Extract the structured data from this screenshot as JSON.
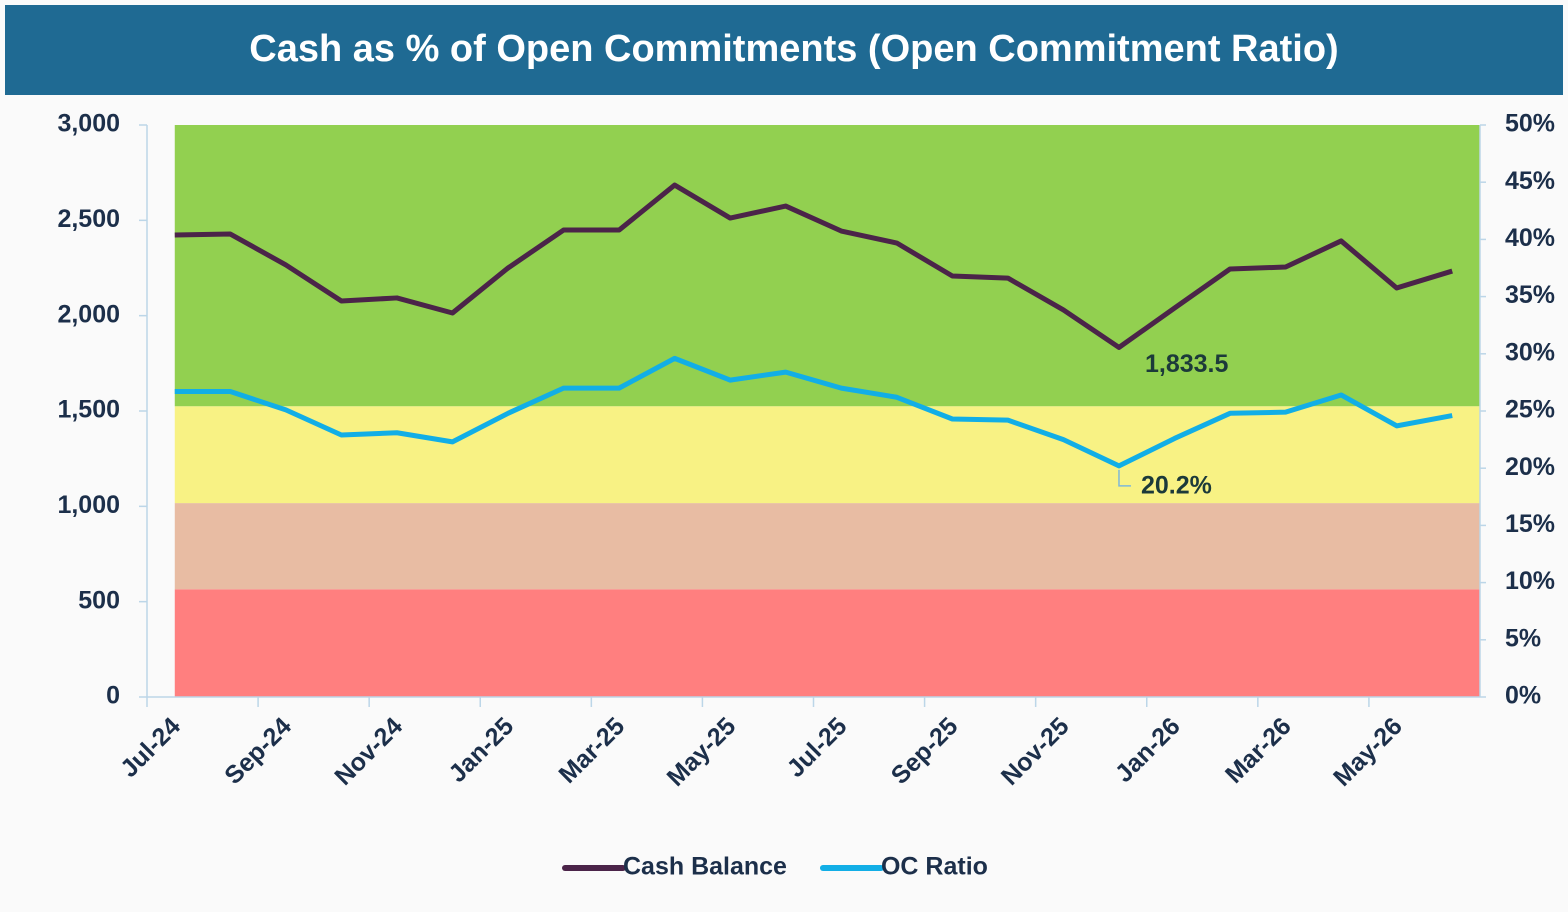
{
  "chart_data": {
    "type": "line",
    "title": "Cash as % of Open Commitments (Open Commitment Ratio)",
    "categories": [
      "Jul-24",
      null,
      "Sep-24",
      null,
      "Nov-24",
      null,
      "Jan-25",
      null,
      "Mar-25",
      null,
      "May-25",
      null,
      "Jul-25",
      null,
      "Sep-25",
      null,
      "Nov-25",
      null,
      "Jan-26",
      null,
      "Mar-26",
      null,
      "May-26",
      null
    ],
    "series": [
      {
        "name": "Cash Balance",
        "color": "#4b2449",
        "values": [
          2423,
          2428,
          2266,
          2077,
          2093,
          2014,
          2250,
          2449,
          2449,
          2685,
          2512,
          2575,
          2444,
          2381,
          2208,
          2197,
          2030,
          1833.5,
          2040,
          2245,
          2255,
          2392,
          2145,
          2234
        ]
      },
      {
        "name": "OC Ratio",
        "color": "#12aee6",
        "axis": "y2",
        "values": [
          26.7,
          26.7,
          25.1,
          22.9,
          23.1,
          22.3,
          24.8,
          27.0,
          27.0,
          29.6,
          27.7,
          28.4,
          27.0,
          26.2,
          24.3,
          24.2,
          22.5,
          20.2,
          22.6,
          24.8,
          24.9,
          26.4,
          23.7,
          24.6
        ]
      }
    ],
    "annotations": [
      {
        "text": "1,833.5",
        "series": 0,
        "index": 17
      },
      {
        "text": "20.2%",
        "series": 1,
        "index": 17
      }
    ],
    "bands": [
      {
        "from": 0,
        "to": 565,
        "color": "#ff7f7f"
      },
      {
        "from": 565,
        "to": 1017,
        "color": "#e8bca3"
      },
      {
        "from": 1017,
        "to": 1525,
        "color": "#f8f284"
      },
      {
        "from": 1525,
        "to": 3000,
        "color": "#92d050"
      }
    ],
    "ylim": [
      0,
      3000
    ],
    "yticks": [
      0,
      500,
      {
        "value": 1000,
        "label": "1,000"
      },
      {
        "value": 1500,
        "label": "1,500"
      },
      {
        "value": 2000,
        "label": "2,000"
      },
      {
        "value": 2500,
        "label": "2,500"
      },
      {
        "value": 3000,
        "label": "3,000"
      }
    ],
    "y2lim": [
      0,
      50
    ],
    "y2ticks": [
      {
        "value": 0,
        "label": "0%"
      },
      {
        "value": 5,
        "label": "5%"
      },
      {
        "value": 10,
        "label": "10%"
      },
      {
        "value": 15,
        "label": "15%"
      },
      {
        "value": 20,
        "label": "20%"
      },
      {
        "value": 25,
        "label": "25%"
      },
      {
        "value": 30,
        "label": "30%"
      },
      {
        "value": 35,
        "label": "35%"
      },
      {
        "value": 40,
        "label": "40%"
      },
      {
        "value": 45,
        "label": "45%"
      },
      {
        "value": 50,
        "label": "50%"
      }
    ],
    "legend": "bottom"
  }
}
